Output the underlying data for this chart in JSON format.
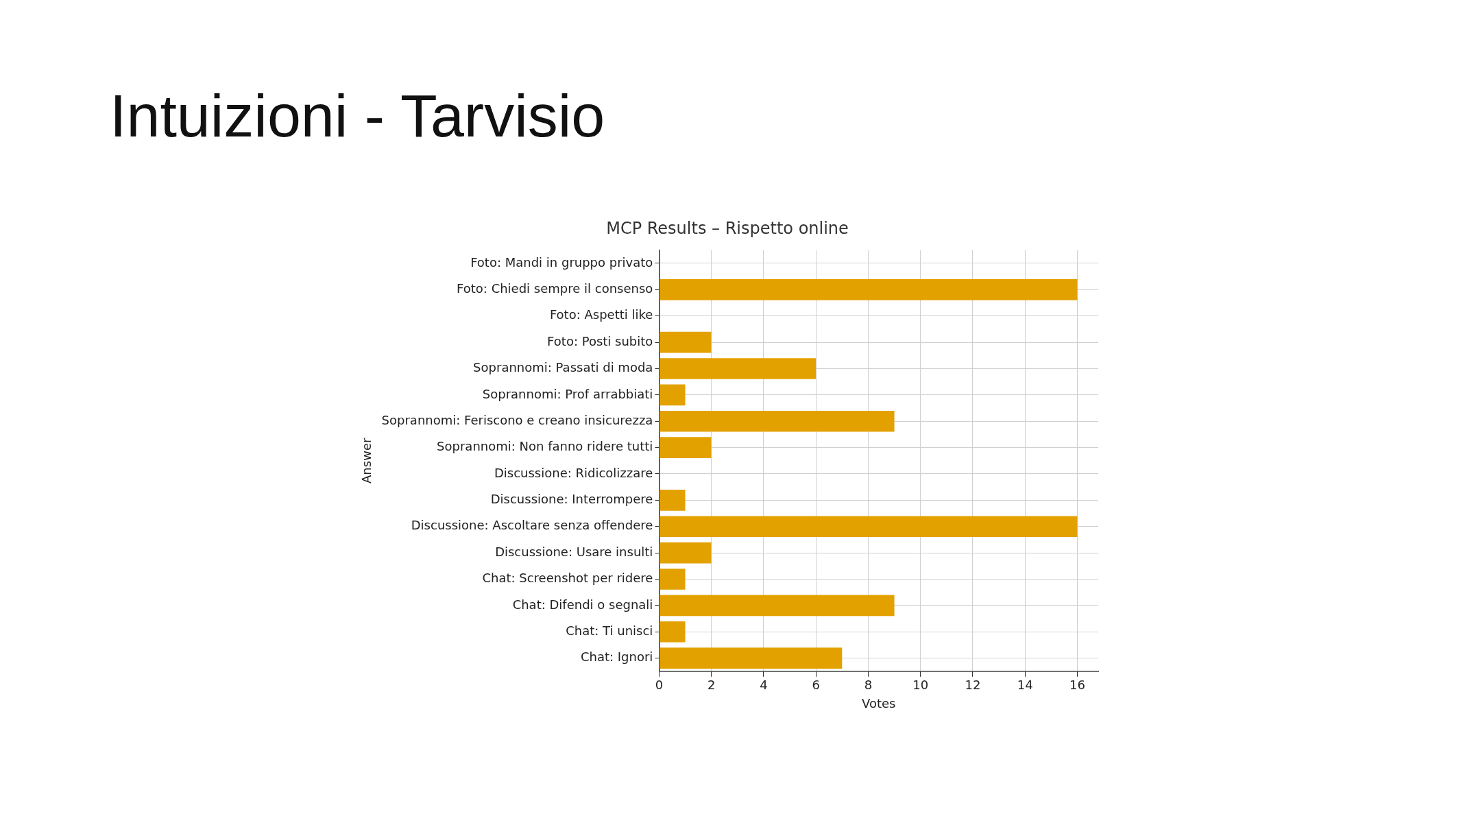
{
  "chart_data": {
    "type": "bar",
    "orientation": "horizontal",
    "title": "Intuizioni - Tarvisio",
    "subtitle": "MCP Results – Rispetto online",
    "xlabel": "Votes",
    "ylabel": "Answer",
    "categories": [
      "Foto: Mandi in gruppo privato",
      "Foto: Chiedi sempre il consenso",
      "Foto: Aspetti like",
      "Foto: Posti subito",
      "Soprannomi: Passati di moda",
      "Soprannomi: Prof arrabbiati",
      "Soprannomi: Feriscono e creano insicurezza",
      "Soprannomi: Non fanno ridere tutti",
      "Discussione: Ridicolizzare",
      "Discussione: Interrompere",
      "Discussione: Ascoltare senza offendere",
      "Discussione: Usare insulti",
      "Chat: Screenshot per ridere",
      "Chat: Difendi o segnali",
      "Chat: Ti unisci",
      "Chat: Ignori"
    ],
    "values": [
      0,
      16,
      0,
      2,
      6,
      1,
      9,
      2,
      0,
      1,
      16,
      2,
      1,
      9,
      1,
      7
    ],
    "color": "#e3a100",
    "xlim": [
      0,
      16.8
    ],
    "xticks": [
      0,
      2,
      4,
      6,
      8,
      10,
      12,
      14,
      16
    ],
    "grid": true,
    "legend": false
  }
}
